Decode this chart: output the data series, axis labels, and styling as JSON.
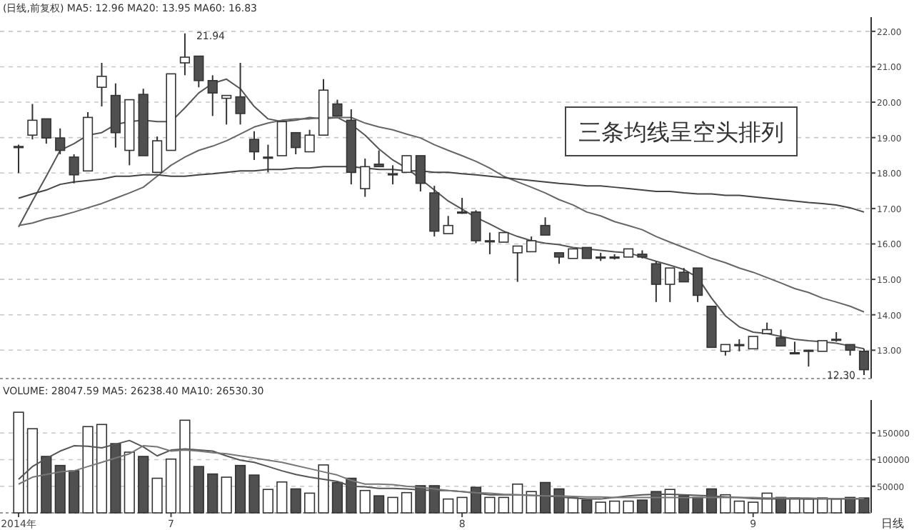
{
  "chart_data": [
    {
      "type": "candlestick",
      "title": "(日线,前复权) MA5: 12.96 MA20: 13.95 MA60: 16.83",
      "colors": [
        "#ffffff",
        "#ffffff",
        "#505050",
        "#505050",
        "#505050",
        "#ffffff",
        "#ffffff",
        "#505050",
        "#ffffff",
        "#505050",
        "#ffffff",
        "#ffffff",
        "#ffffff",
        "#505050",
        "#505050",
        "#ffffff",
        "#505050",
        "#505050",
        "#ffffff",
        "#ffffff",
        "#505050",
        "#ffffff",
        "#ffffff",
        "#505050",
        "#505050",
        "#ffffff",
        "#505050",
        "#ffffff",
        "#ffffff",
        "#505050",
        "#505050",
        "#ffffff",
        "#ffffff",
        "#505050",
        "#ffffff",
        "#ffffff",
        "#ffffff",
        "#ffffff",
        "#505050",
        "#505050",
        "#ffffff",
        "#505050",
        "#ffffff",
        "#ffffff",
        "#ffffff",
        "#505050",
        "#505050",
        "#ffffff",
        "#505050",
        "#505050",
        "#505050",
        "#ffffff",
        "#ffffff",
        "#ffffff",
        "#ffffff",
        "#505050",
        "#ffffff",
        "#ffffff",
        "#ffffff",
        "#ffffff",
        "#505050",
        "#505050"
      ],
      "categories": [
        null,
        null,
        null,
        null,
        null,
        null,
        null,
        null,
        null,
        null,
        null,
        null,
        null,
        null,
        null,
        null,
        null,
        null,
        null,
        null,
        null,
        null,
        null,
        null,
        null,
        null,
        null,
        null,
        null,
        null,
        null,
        null,
        null,
        null,
        null,
        null,
        null,
        null,
        null,
        null,
        null,
        null,
        null,
        null,
        null,
        null,
        null,
        null,
        null,
        null,
        null,
        null,
        null,
        null,
        null,
        null,
        null,
        null,
        null,
        null,
        null,
        null
      ],
      "ohlc": [
        [
          18.75,
          18.8,
          18.0,
          18.75
        ],
        [
          19.07,
          19.95,
          18.95,
          19.49
        ],
        [
          19.53,
          19.53,
          18.83,
          18.99
        ],
        [
          18.99,
          19.26,
          18.53,
          18.64
        ],
        [
          18.45,
          18.53,
          17.71,
          17.95
        ],
        [
          18.06,
          19.72,
          18.06,
          19.57
        ],
        [
          20.42,
          21.11,
          19.88,
          20.73
        ],
        [
          20.19,
          20.53,
          18.72,
          19.14
        ],
        [
          18.64,
          20.07,
          18.22,
          20.07
        ],
        [
          20.22,
          20.38,
          18.49,
          18.49
        ],
        [
          18.02,
          19.03,
          18.02,
          18.91
        ],
        [
          18.64,
          20.8,
          18.64,
          20.8
        ],
        [
          21.11,
          21.94,
          20.76,
          21.27
        ],
        [
          21.3,
          21.3,
          20.42,
          20.61
        ],
        [
          20.61,
          20.76,
          19.61,
          20.26
        ],
        [
          20.11,
          20.19,
          19.37,
          20.19
        ],
        [
          20.15,
          21.11,
          19.37,
          19.68
        ],
        [
          18.95,
          19.18,
          18.37,
          18.6
        ],
        [
          18.45,
          18.8,
          18.02,
          18.45
        ],
        [
          18.49,
          19.45,
          18.49,
          19.45
        ],
        [
          19.14,
          19.14,
          18.53,
          18.72
        ],
        [
          18.6,
          19.22,
          18.6,
          19.07
        ],
        [
          19.07,
          20.65,
          19.07,
          20.34
        ],
        [
          19.95,
          20.07,
          19.61,
          19.61
        ],
        [
          19.49,
          19.8,
          17.68,
          18.02
        ],
        [
          17.56,
          18.41,
          17.33,
          18.18
        ],
        [
          18.25,
          18.64,
          18.18,
          18.18
        ],
        [
          17.98,
          18.22,
          17.68,
          17.98
        ],
        [
          18.02,
          18.49,
          18.02,
          18.49
        ],
        [
          18.49,
          18.49,
          17.48,
          17.71
        ],
        [
          17.44,
          17.64,
          16.21,
          16.36
        ],
        [
          16.29,
          16.79,
          16.29,
          16.52
        ],
        [
          16.9,
          17.3,
          16.85,
          16.9
        ],
        [
          16.9,
          16.95,
          16.02,
          16.09
        ],
        [
          16.09,
          16.32,
          15.71,
          16.09
        ],
        [
          16.05,
          16.32,
          16.05,
          16.32
        ],
        [
          15.75,
          15.94,
          14.93,
          15.94
        ],
        [
          15.78,
          16.21,
          15.78,
          16.09
        ],
        [
          16.52,
          16.75,
          16.25,
          16.25
        ],
        [
          15.75,
          15.75,
          15.44,
          15.63
        ],
        [
          15.59,
          15.86,
          15.59,
          15.86
        ],
        [
          15.9,
          15.9,
          15.59,
          15.59
        ],
        [
          15.63,
          15.75,
          15.52,
          15.63
        ],
        [
          15.63,
          15.71,
          15.56,
          15.63
        ],
        [
          15.63,
          15.86,
          15.63,
          15.86
        ],
        [
          15.71,
          15.82,
          15.59,
          15.63
        ],
        [
          15.44,
          15.51,
          14.36,
          14.86
        ],
        [
          14.86,
          15.32,
          14.36,
          15.32
        ],
        [
          15.2,
          15.32,
          14.93,
          14.93
        ],
        [
          15.32,
          15.32,
          14.36,
          14.55
        ],
        [
          14.24,
          14.24,
          13.08,
          13.08
        ],
        [
          12.97,
          13.16,
          12.85,
          13.16
        ],
        [
          13.16,
          13.31,
          12.97,
          13.16
        ],
        [
          13.04,
          13.39,
          13.04,
          13.39
        ],
        [
          13.47,
          13.78,
          13.47,
          13.58
        ],
        [
          13.35,
          13.58,
          13.12,
          13.12
        ],
        [
          12.93,
          13.24,
          12.93,
          12.93
        ],
        [
          13.0,
          13.0,
          12.54,
          13.0
        ],
        [
          12.97,
          13.27,
          12.97,
          13.27
        ],
        [
          13.31,
          13.51,
          13.24,
          13.31
        ],
        [
          13.16,
          13.16,
          12.85,
          13.0
        ],
        [
          12.97,
          13.04,
          12.3,
          12.45
        ]
      ],
      "series": [
        {
          "type": "line",
          "color": "#555555",
          "values": [
            16.48,
            17.21,
            17.91,
            18.64,
            18.83,
            19.07,
            19.14,
            19.37,
            19.45,
            19.49,
            19.45,
            19.45,
            19.84,
            20.26,
            20.53,
            20.65,
            20.38,
            19.88,
            19.53,
            19.45,
            19.49,
            19.57,
            19.53,
            19.57,
            19.37,
            19.07,
            18.68,
            18.37,
            18.14,
            17.83,
            17.52,
            17.21,
            16.98,
            16.75,
            16.56,
            16.36,
            16.21,
            16.09,
            16.02,
            15.98,
            15.9,
            15.86,
            15.82,
            15.78,
            15.75,
            15.63,
            15.51,
            15.4,
            15.28,
            15.05,
            14.47,
            13.97,
            13.66,
            13.51,
            13.47,
            13.39,
            13.31,
            13.27,
            13.24,
            13.2,
            13.12,
            13.04
          ]
        },
        {
          "type": "line",
          "color": "#666666",
          "values": [
            16.52,
            16.59,
            16.71,
            16.79,
            16.9,
            17.02,
            17.14,
            17.29,
            17.44,
            17.6,
            17.91,
            18.22,
            18.45,
            18.64,
            18.76,
            18.91,
            19.1,
            19.3,
            19.41,
            19.49,
            19.53,
            19.53,
            19.57,
            19.57,
            19.57,
            19.41,
            19.3,
            19.22,
            19.1,
            18.99,
            18.8,
            18.64,
            18.49,
            18.33,
            18.14,
            17.91,
            17.75,
            17.6,
            17.44,
            17.25,
            17.1,
            16.9,
            16.79,
            16.63,
            16.52,
            16.4,
            16.21,
            16.05,
            15.9,
            15.75,
            15.59,
            15.47,
            15.32,
            15.2,
            15.05,
            14.9,
            14.74,
            14.63,
            14.47,
            14.36,
            14.24,
            14.08
          ]
        },
        {
          "type": "line",
          "color": "#444444",
          "values": [
            17.29,
            17.41,
            17.52,
            17.68,
            17.75,
            17.79,
            17.83,
            17.91,
            17.91,
            17.95,
            17.95,
            17.91,
            17.91,
            17.95,
            17.98,
            18.02,
            18.06,
            18.06,
            18.1,
            18.1,
            18.14,
            18.14,
            18.18,
            18.18,
            18.18,
            18.14,
            18.1,
            18.1,
            18.06,
            18.06,
            18.02,
            18.02,
            17.98,
            17.95,
            17.91,
            17.87,
            17.83,
            17.79,
            17.75,
            17.71,
            17.68,
            17.64,
            17.64,
            17.6,
            17.56,
            17.52,
            17.48,
            17.48,
            17.44,
            17.41,
            17.41,
            17.37,
            17.37,
            17.33,
            17.29,
            17.25,
            17.21,
            17.17,
            17.14,
            17.1,
            17.02,
            16.9
          ]
        }
      ],
      "ylim": [
        12.2,
        22.4
      ],
      "yticks": [
        {
          "value": 13,
          "label": "13.00"
        },
        {
          "value": 14,
          "label": "14.00"
        },
        {
          "value": 15,
          "label": "15.00"
        },
        {
          "value": 16,
          "label": "16.00"
        },
        {
          "value": 17,
          "label": "17.00"
        },
        {
          "value": 18,
          "label": "18.00"
        },
        {
          "value": 19,
          "label": "19.00"
        },
        {
          "value": 20,
          "label": "20.00"
        },
        {
          "value": 21,
          "label": "21.00"
        },
        {
          "value": 22,
          "label": "22.00"
        }
      ],
      "grid": "y",
      "tick_labels": "y",
      "annotations": [
        "21.94",
        "12.30",
        "三条均线呈空头排列"
      ]
    },
    {
      "type": "bar",
      "title": "VOLUME: 28047.59 MA5: 26238.40 MA10: 26530.30",
      "categories": [
        "2014年",
        null,
        null,
        null,
        null,
        null,
        null,
        null,
        null,
        null,
        null,
        "7",
        null,
        null,
        null,
        null,
        null,
        null,
        null,
        null,
        null,
        null,
        null,
        null,
        null,
        null,
        null,
        null,
        null,
        null,
        null,
        null,
        "8",
        null,
        null,
        null,
        null,
        null,
        null,
        null,
        null,
        null,
        null,
        null,
        null,
        null,
        null,
        null,
        null,
        null,
        null,
        null,
        null,
        "9",
        null,
        null,
        null,
        null,
        null,
        null,
        null,
        null
      ],
      "series": [
        {
          "type": "bar",
          "values": [
            189000,
            158000,
            106000,
            89000,
            79000,
            162000,
            166000,
            130000,
            114000,
            106000,
            65000,
            101000,
            174000,
            87000,
            73000,
            67000,
            89000,
            71000,
            44000,
            58000,
            45000,
            37000,
            90000,
            57000,
            65000,
            42000,
            32000,
            29000,
            38000,
            51000,
            51000,
            26000,
            29000,
            48000,
            29000,
            29000,
            54000,
            40000,
            57000,
            45000,
            28000,
            24000,
            20000,
            22000,
            22000,
            24000,
            40000,
            44000,
            32000,
            29000,
            45000,
            34000,
            22000,
            20000,
            37000,
            29000,
            28000,
            26000,
            28000,
            26000,
            29000,
            28000
          ],
          "colors": [
            "#ffffff",
            "#ffffff",
            "#505050",
            "#505050",
            "#505050",
            "#ffffff",
            "#ffffff",
            "#505050",
            "#ffffff",
            "#505050",
            "#ffffff",
            "#ffffff",
            "#ffffff",
            "#505050",
            "#505050",
            "#ffffff",
            "#505050",
            "#505050",
            "#ffffff",
            "#ffffff",
            "#505050",
            "#ffffff",
            "#ffffff",
            "#505050",
            "#505050",
            "#ffffff",
            "#505050",
            "#ffffff",
            "#ffffff",
            "#505050",
            "#505050",
            "#ffffff",
            "#ffffff",
            "#505050",
            "#ffffff",
            "#ffffff",
            "#ffffff",
            "#ffffff",
            "#505050",
            "#505050",
            "#ffffff",
            "#505050",
            "#ffffff",
            "#ffffff",
            "#ffffff",
            "#505050",
            "#505050",
            "#ffffff",
            "#505050",
            "#505050",
            "#505050",
            "#ffffff",
            "#ffffff",
            "#ffffff",
            "#ffffff",
            "#505050",
            "#ffffff",
            "#ffffff",
            "#ffffff",
            "#ffffff",
            "#505050",
            "#505050"
          ]
        },
        {
          "type": "line",
          "color": "#555555",
          "values": [
            63000,
            87000,
            102000,
            116000,
            126000,
            125000,
            122000,
            129000,
            136000,
            124000,
            107000,
            118000,
            120000,
            118000,
            116000,
            107000,
            99000,
            95000,
            87000,
            79000,
            72000,
            67000,
            63000,
            59000,
            50000,
            49000,
            46000,
            46000,
            45000,
            43000,
            42000,
            42000,
            40000,
            37000,
            34000,
            34000,
            34000,
            33000,
            32000,
            30000,
            28000,
            26000,
            26000,
            29000,
            32000,
            34000,
            35000,
            35000,
            34000,
            33000,
            32000,
            30000,
            29000,
            27000,
            26000,
            26000,
            26000,
            26000,
            26000,
            26000,
            26000,
            26000
          ]
        },
        {
          "type": "line",
          "color": "#777777",
          "values": [
            54000,
            67000,
            72000,
            77000,
            79000,
            87000,
            95000,
            103000,
            111000,
            126000,
            124000,
            116000,
            118000,
            116000,
            113000,
            111000,
            107000,
            103000,
            99000,
            95000,
            89000,
            83000,
            77000,
            71000,
            61000,
            54000,
            54000,
            53000,
            50000,
            48000,
            45000,
            42000,
            40000,
            38000,
            37000,
            35000,
            34000,
            33000,
            32000,
            32000,
            31000,
            30000,
            30000,
            29000,
            29000,
            29000,
            29000,
            29000,
            29000,
            29000,
            29000,
            29000,
            29000,
            29000,
            28000,
            28000,
            28000,
            28000,
            27000,
            27000,
            27000,
            27000
          ]
        }
      ],
      "ylim": [
        0,
        212000
      ],
      "yticks": [
        50000,
        100000,
        150000
      ],
      "grid": "y",
      "annotations": [
        "日线"
      ]
    }
  ]
}
